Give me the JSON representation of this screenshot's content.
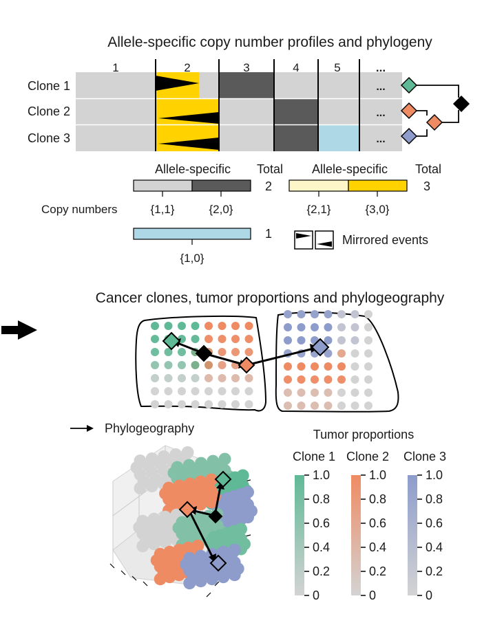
{
  "top": {
    "title": "Allele-specific copy number profiles and phylogeny",
    "segments": [
      "1",
      "2",
      "3",
      "4",
      "5",
      "..."
    ],
    "clones": [
      "Clone 1",
      "Clone 2",
      "Clone 3"
    ],
    "ellipsis": "...",
    "legend": {
      "allele_specific": "Allele-specific",
      "total": "Total",
      "total_2": "2",
      "total_3": "3",
      "total_1": "1",
      "copy_numbers": "Copy numbers",
      "cn_11": "{1,1}",
      "cn_20": "{2,0}",
      "cn_21": "{2,1}",
      "cn_30": "{3,0}",
      "cn_10": "{1,0}",
      "mirrored": "Mirrored events"
    }
  },
  "bottom": {
    "title": "Cancer clones, tumor proportions and phylogeography",
    "phylogeography": "Phylogeography",
    "tumor_proportions": "Tumor proportions",
    "colorbars": [
      {
        "name": "Clone 1",
        "color": "#5fb996"
      },
      {
        "name": "Clone 2",
        "color": "#ef8b63"
      },
      {
        "name": "Clone 3",
        "color": "#8d9ccb"
      }
    ],
    "ticks": [
      "1.0",
      "0.8",
      "0.6",
      "0.4",
      "0.2",
      "0"
    ]
  },
  "colors": {
    "clone1": "#5fb996",
    "clone2": "#ef8b63",
    "clone3": "#8d9ccb",
    "gray": "#d3d3d3",
    "dark": "#5a5a5a",
    "yellow": "#ffd200",
    "pale_yellow": "#fdf6c8",
    "light_blue": "#aed8e6",
    "root": "#000000"
  }
}
